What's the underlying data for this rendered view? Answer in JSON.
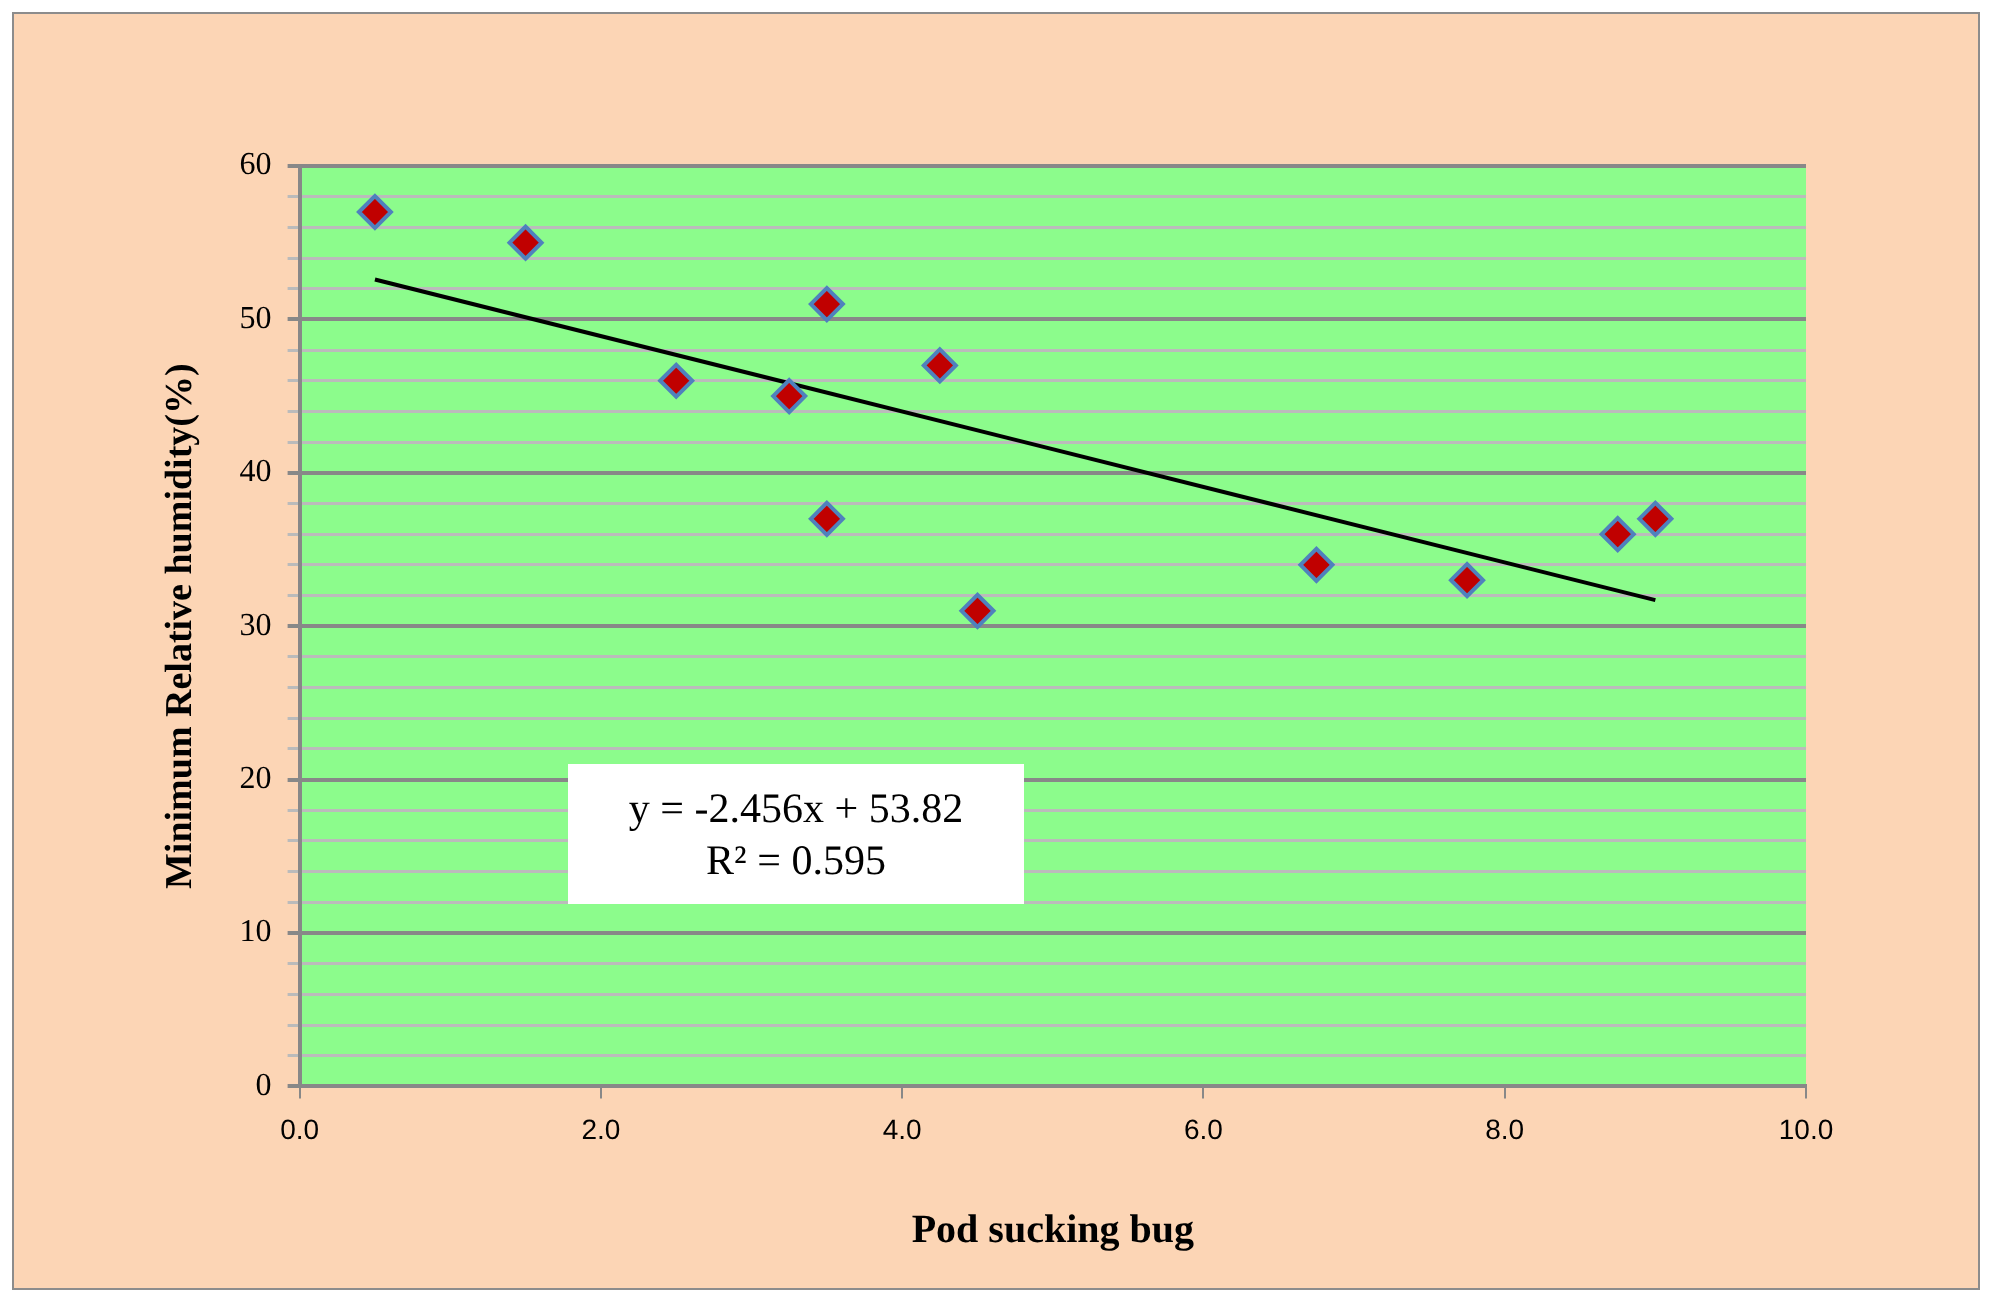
{
  "chart_data": {
    "type": "scatter",
    "xlabel": "Pod sucking bug",
    "ylabel": "Minimum Relative humidity(%)",
    "series": [
      {
        "color": "#c00000",
        "marker": "diamond",
        "x": [
          0.5,
          1.5,
          2.5,
          3.25,
          3.5,
          3.5,
          4.25,
          4.5,
          6.75,
          7.75,
          8.75,
          9
        ],
        "values": [
          57,
          55,
          46,
          45,
          51,
          37,
          47,
          31,
          34,
          33,
          36,
          37
        ]
      },
      {
        "type": "line",
        "color": "#000000",
        "marker": "none",
        "x": [
          0.5,
          9
        ],
        "values": [
          52.6,
          31.7
        ]
      }
    ],
    "xlim": [
      0,
      10
    ],
    "xticks": [
      {
        "value": 0,
        "label": "0.0"
      },
      {
        "value": 2,
        "label": "2.0"
      },
      {
        "value": 4,
        "label": "4.0"
      },
      {
        "value": 6,
        "label": "6.0"
      },
      {
        "value": 8,
        "label": "8.0"
      },
      {
        "value": 10,
        "label": "10.0"
      }
    ],
    "ylim": [
      0,
      60
    ],
    "yticks": [
      0,
      {
        "value": 2,
        "label": null
      },
      {
        "value": 4,
        "label": null
      },
      {
        "value": 6,
        "label": null
      },
      {
        "value": 8,
        "label": null
      },
      10,
      {
        "value": 12,
        "label": null
      },
      {
        "value": 14,
        "label": null
      },
      {
        "value": 16,
        "label": null
      },
      {
        "value": 18,
        "label": null
      },
      20,
      {
        "value": 22,
        "label": null
      },
      {
        "value": 24,
        "label": null
      },
      {
        "value": 26,
        "label": null
      },
      {
        "value": 28,
        "label": null
      },
      30,
      {
        "value": 32,
        "label": null
      },
      {
        "value": 34,
        "label": null
      },
      {
        "value": 36,
        "label": null
      },
      {
        "value": 38,
        "label": null
      },
      40,
      {
        "value": 42,
        "label": null
      },
      {
        "value": 44,
        "label": null
      },
      {
        "value": 46,
        "label": null
      },
      {
        "value": 48,
        "label": null
      },
      50,
      {
        "value": 52,
        "label": null
      },
      {
        "value": 54,
        "label": null
      },
      {
        "value": 56,
        "label": null
      },
      {
        "value": 58,
        "label": null
      },
      60
    ],
    "grid": "y",
    "legend": false,
    "annotations": [
      "y = -2.456x + 53.82",
      "R² = 0.595"
    ]
  }
}
